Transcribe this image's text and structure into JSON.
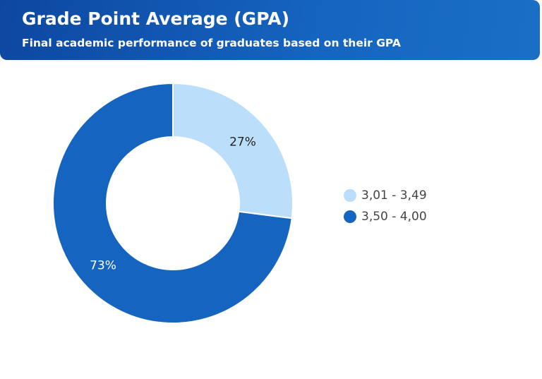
{
  "chart_data": {
    "type": "pie",
    "title": "Grade Point Average (GPA)",
    "subtitle": "Final academic performance of graduates based on their GPA",
    "donut": true,
    "categories": [
      "3,01 - 3,49",
      "3,50 - 4,00"
    ],
    "values": [
      27,
      73
    ],
    "labels": [
      "27%",
      "73%"
    ],
    "colors": [
      "#bbdefb",
      "#1565c0"
    ],
    "legend_position": "right"
  }
}
